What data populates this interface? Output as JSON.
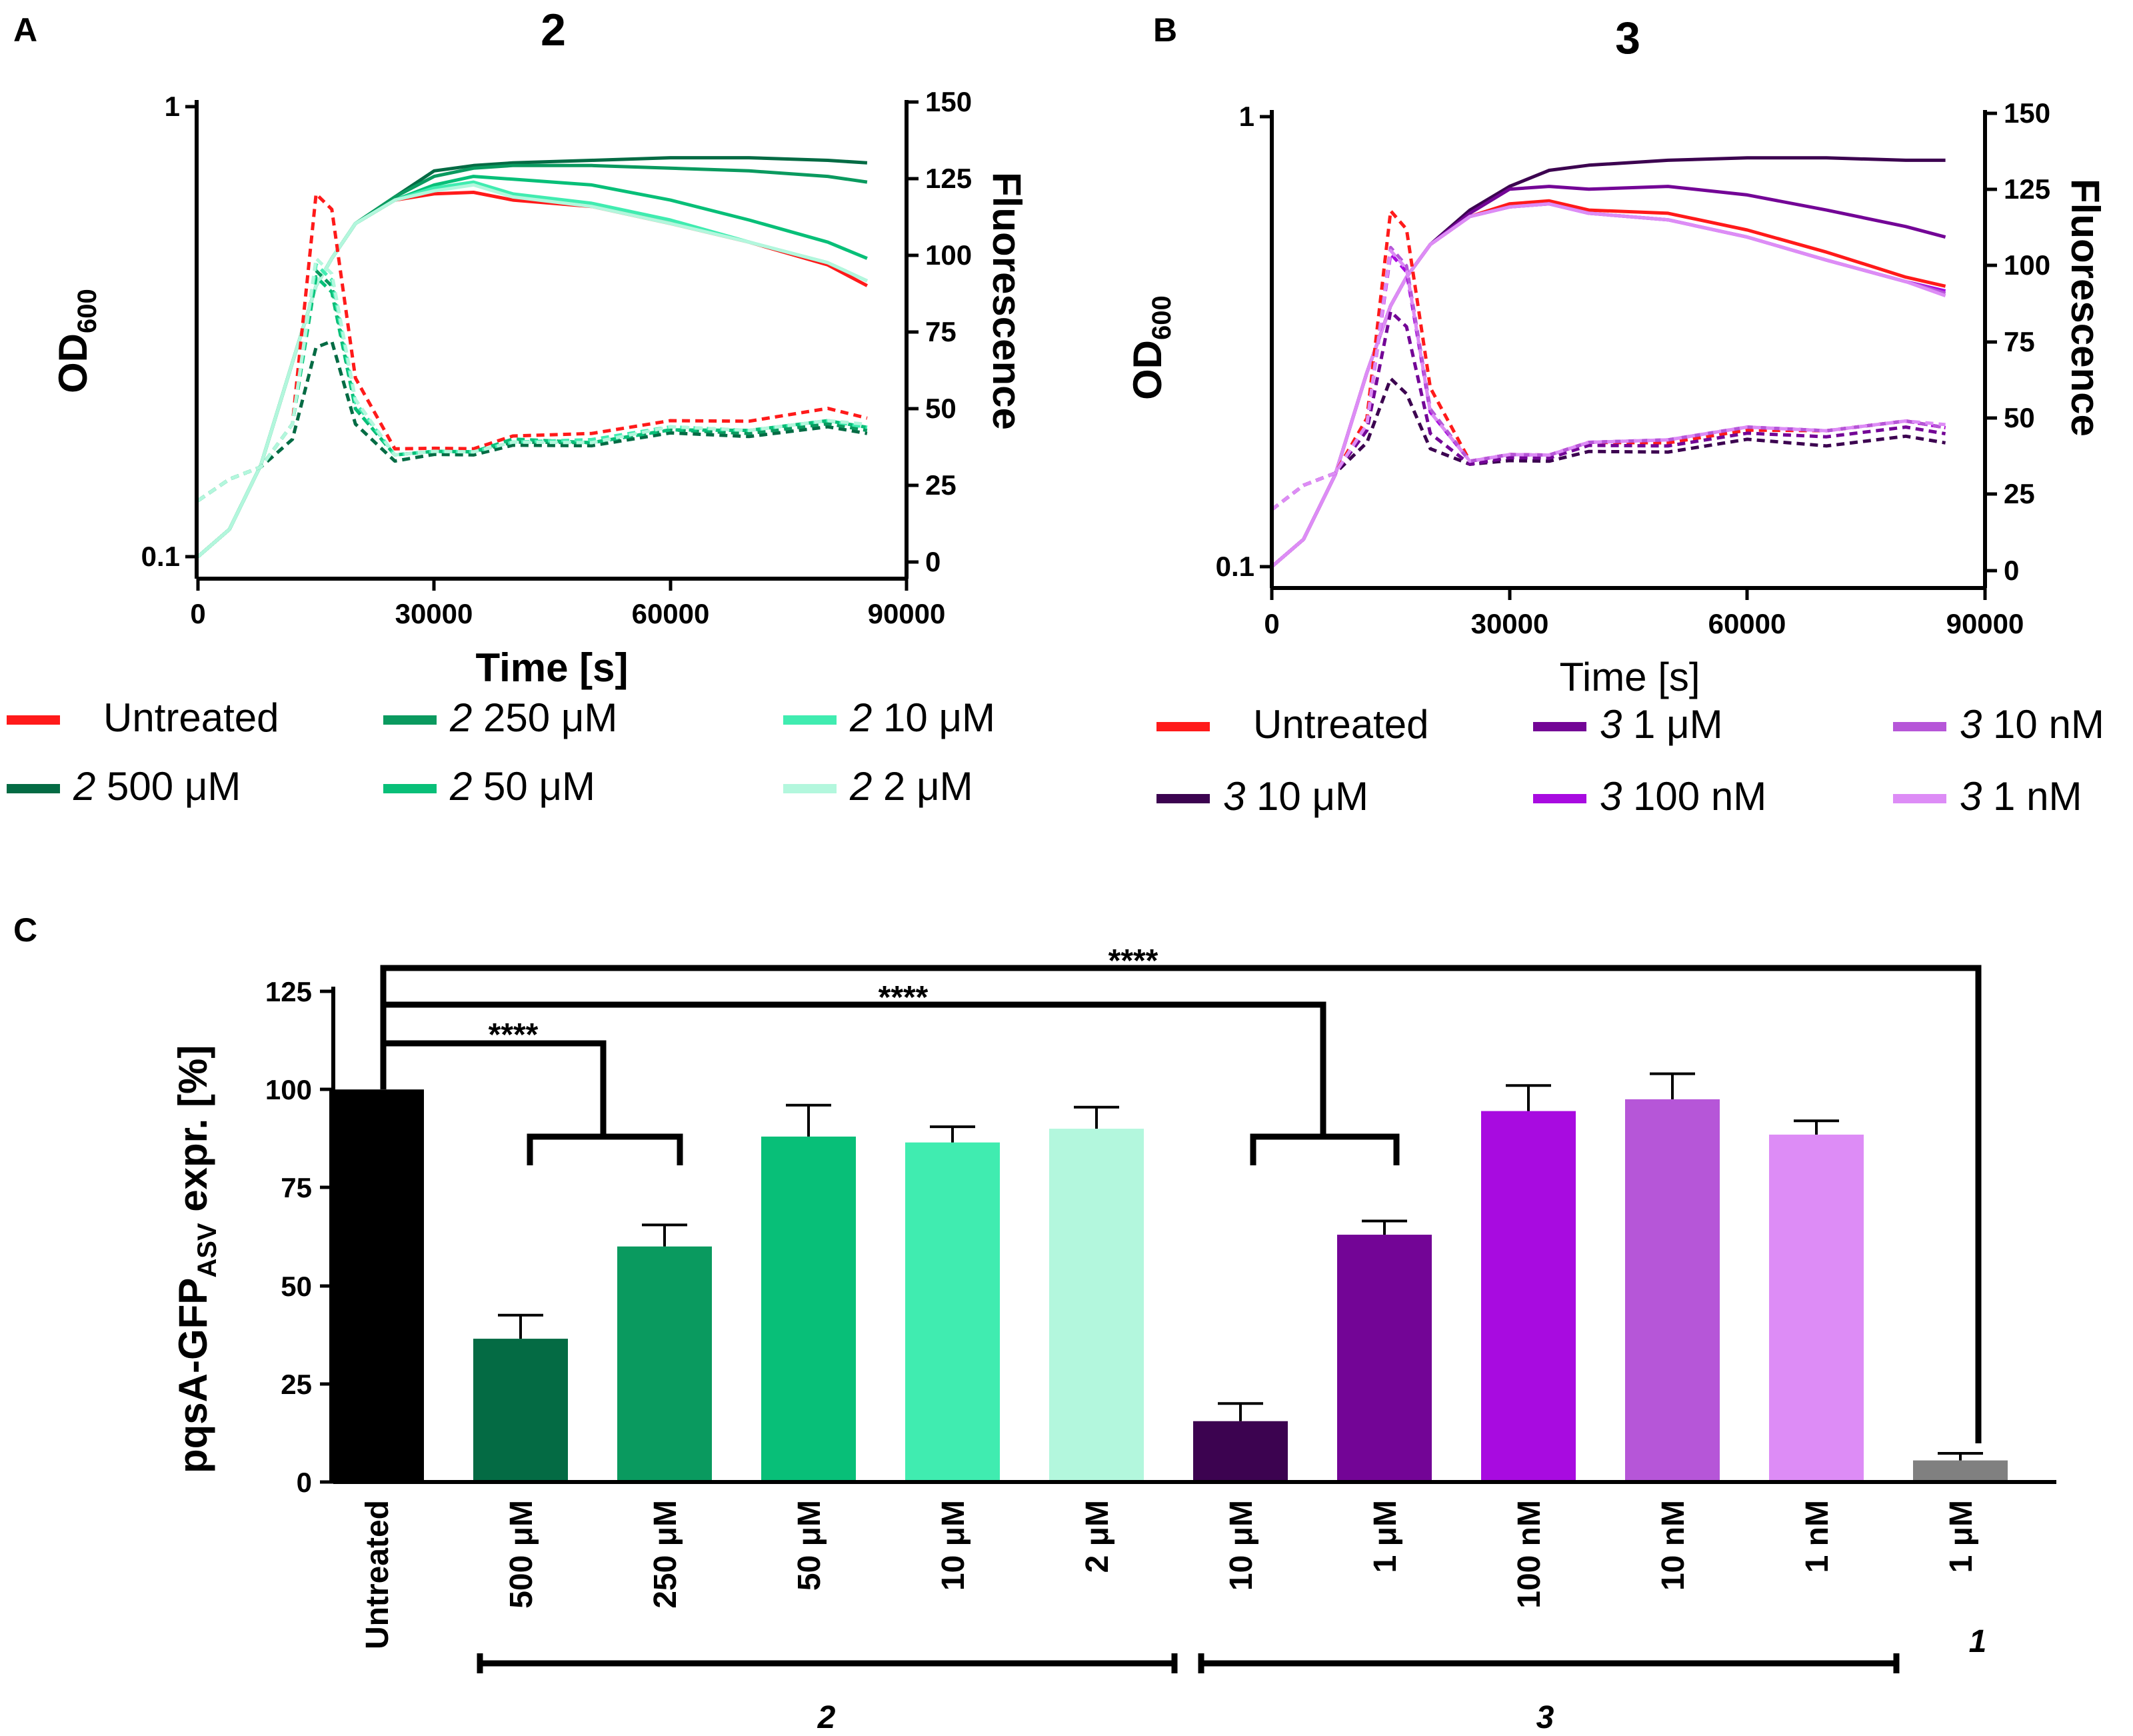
{
  "panels": {
    "A": {
      "label": "A",
      "title": "2"
    },
    "B": {
      "label": "B",
      "title": "3"
    },
    "C": {
      "label": "C"
    }
  },
  "colors": {
    "untreated": "#ff1a1a",
    "c2_500uM": "#046b44",
    "c2_250uM": "#0a9a5f",
    "c2_50uM": "#08bf78",
    "c2_10uM": "#40ecb0",
    "c2_2uM": "#b3f7dd",
    "c3_10uM": "#3c0350",
    "c3_1uM": "#730596",
    "c3_100nM": "#a80be0",
    "c3_10nM": "#b656d8",
    "c3_1nM": "#dd8cf6",
    "c1_1uM": "#808080",
    "black": "#000000"
  },
  "legend_A": [
    {
      "key": "untreated",
      "prefix": "",
      "text": "Untreated"
    },
    {
      "key": "c2_500uM",
      "prefix": "2",
      "text": " 500 μM"
    },
    {
      "key": "c2_250uM",
      "prefix": "2",
      "text": " 250 μM"
    },
    {
      "key": "c2_50uM",
      "prefix": "2",
      "text": " 50 μM"
    },
    {
      "key": "c2_10uM",
      "prefix": "2",
      "text": " 10 μM"
    },
    {
      "key": "c2_2uM",
      "prefix": "2",
      "text": " 2 μM"
    }
  ],
  "legend_B": [
    {
      "key": "untreated",
      "prefix": "",
      "text": "Untreated"
    },
    {
      "key": "c3_10uM",
      "prefix": "3",
      "text": " 10 μM"
    },
    {
      "key": "c3_1uM",
      "prefix": "3",
      "text": " 1 μM"
    },
    {
      "key": "c3_100nM",
      "prefix": "3",
      "text": " 100 nM"
    },
    {
      "key": "c3_10nM",
      "prefix": "3",
      "text": " 10 nM"
    },
    {
      "key": "c3_1nM",
      "prefix": "3",
      "text": " 1 nM"
    }
  ],
  "chart_data": [
    {
      "id": "A",
      "type": "line",
      "title": "2",
      "xlabel": "Time [s]",
      "ylabel_left": "OD600",
      "ylabel_right": "Fluorescence",
      "xlim": [
        0,
        90000
      ],
      "xticks": [
        "0",
        "30000",
        "60000",
        "90000"
      ],
      "ylim_left": [
        0.09,
        1
      ],
      "yscale_left": "log",
      "yticks_left": [
        "0.1",
        "1"
      ],
      "ylim_right": [
        -5,
        150
      ],
      "yticks_right": [
        "0",
        "25",
        "50",
        "75",
        "100",
        "125",
        "150"
      ],
      "x": [
        0,
        4000,
        8000,
        12000,
        15000,
        17000,
        20000,
        25000,
        30000,
        35000,
        40000,
        50000,
        60000,
        70000,
        80000,
        85000
      ],
      "series": [
        {
          "name": "Untreated",
          "key": "untreated",
          "measure": "OD600",
          "style": "solid",
          "values": [
            0.1,
            0.115,
            0.16,
            0.27,
            0.4,
            0.46,
            0.55,
            0.62,
            0.64,
            0.645,
            0.62,
            0.6,
            0.55,
            0.5,
            0.445,
            0.4
          ]
        },
        {
          "name": "2 500 μM",
          "key": "c2_500uM",
          "measure": "OD600",
          "style": "solid",
          "values": [
            0.1,
            0.115,
            0.16,
            0.27,
            0.4,
            0.46,
            0.55,
            0.63,
            0.72,
            0.74,
            0.75,
            0.76,
            0.77,
            0.77,
            0.76,
            0.75
          ]
        },
        {
          "name": "2 250 μM",
          "key": "c2_250uM",
          "measure": "OD600",
          "style": "solid",
          "values": [
            0.1,
            0.115,
            0.16,
            0.27,
            0.4,
            0.46,
            0.55,
            0.63,
            0.7,
            0.73,
            0.74,
            0.74,
            0.73,
            0.72,
            0.7,
            0.68
          ]
        },
        {
          "name": "2 50 μM",
          "key": "c2_50uM",
          "measure": "OD600",
          "style": "solid",
          "values": [
            0.1,
            0.115,
            0.16,
            0.27,
            0.4,
            0.46,
            0.55,
            0.62,
            0.67,
            0.7,
            0.69,
            0.67,
            0.62,
            0.56,
            0.5,
            0.46
          ]
        },
        {
          "name": "2 10 μM",
          "key": "c2_10uM",
          "measure": "OD600",
          "style": "solid",
          "values": [
            0.1,
            0.115,
            0.16,
            0.27,
            0.4,
            0.46,
            0.55,
            0.62,
            0.66,
            0.68,
            0.64,
            0.61,
            0.56,
            0.5,
            0.45,
            0.41
          ]
        },
        {
          "name": "2 2 μM",
          "key": "c2_2uM",
          "measure": "OD600",
          "style": "solid",
          "values": [
            0.1,
            0.115,
            0.16,
            0.27,
            0.4,
            0.46,
            0.55,
            0.62,
            0.65,
            0.67,
            0.63,
            0.6,
            0.55,
            0.5,
            0.45,
            0.41
          ]
        },
        {
          "name": "Untreated",
          "key": "untreated",
          "measure": "Fluorescence",
          "style": "dashed",
          "values": [
            20,
            27,
            31,
            45,
            120,
            115,
            60,
            38,
            36,
            38,
            40,
            43,
            45,
            47,
            49,
            48
          ]
        },
        {
          "name": "2 500 μM",
          "key": "c2_500uM",
          "measure": "Fluorescence",
          "style": "dashed",
          "values": [
            20,
            27,
            31,
            40,
            70,
            72,
            45,
            34,
            34,
            36,
            37,
            39,
            41,
            42,
            43,
            43
          ]
        },
        {
          "name": "2 250 μM",
          "key": "c2_250uM",
          "measure": "Fluorescence",
          "style": "dashed",
          "values": [
            20,
            27,
            31,
            45,
            95,
            90,
            50,
            36,
            35,
            37,
            38,
            40,
            42,
            43,
            44,
            44
          ]
        },
        {
          "name": "2 50 μM",
          "key": "c2_50uM",
          "measure": "Fluorescence",
          "style": "dashed",
          "values": [
            20,
            27,
            31,
            45,
            93,
            88,
            50,
            36,
            35,
            37,
            39,
            40,
            42,
            44,
            45,
            45
          ]
        },
        {
          "name": "2 10 μM",
          "key": "c2_10uM",
          "measure": "Fluorescence",
          "style": "dashed",
          "values": [
            20,
            27,
            31,
            45,
            97,
            92,
            52,
            36,
            35,
            37,
            38,
            41,
            43,
            44,
            45,
            45
          ]
        },
        {
          "name": "2 2 μM",
          "key": "c2_2uM",
          "measure": "Fluorescence",
          "style": "dashed",
          "values": [
            20,
            27,
            31,
            45,
            99,
            94,
            53,
            36,
            35,
            37,
            38,
            40,
            43,
            44,
            45,
            46
          ]
        }
      ]
    },
    {
      "id": "B",
      "type": "line",
      "title": "3",
      "xlabel": "Time [s]",
      "ylabel_left": "OD600",
      "ylabel_right": "Fluorescence",
      "xlim": [
        0,
        90000
      ],
      "xticks": [
        "0",
        "30000",
        "60000",
        "90000"
      ],
      "ylim_left": [
        0.09,
        1
      ],
      "yscale_left": "log",
      "yticks_left": [
        "0.1",
        "1"
      ],
      "ylim_right": [
        -5,
        150
      ],
      "yticks_right": [
        "0",
        "25",
        "50",
        "75",
        "100",
        "125",
        "150"
      ],
      "x": [
        0,
        4000,
        8000,
        12000,
        15000,
        17000,
        20000,
        25000,
        30000,
        35000,
        40000,
        50000,
        60000,
        70000,
        80000,
        85000
      ],
      "series": [
        {
          "name": "Untreated",
          "key": "untreated",
          "measure": "OD600",
          "style": "solid",
          "values": [
            0.1,
            0.115,
            0.16,
            0.27,
            0.38,
            0.44,
            0.52,
            0.6,
            0.64,
            0.65,
            0.62,
            0.61,
            0.56,
            0.5,
            0.44,
            0.42
          ]
        },
        {
          "name": "3 10 μM",
          "key": "c3_10uM",
          "measure": "OD600",
          "style": "solid",
          "values": [
            0.1,
            0.115,
            0.16,
            0.27,
            0.38,
            0.44,
            0.52,
            0.62,
            0.7,
            0.76,
            0.78,
            0.8,
            0.81,
            0.81,
            0.8,
            0.8
          ]
        },
        {
          "name": "3 1 μM",
          "key": "c3_1uM",
          "measure": "OD600",
          "style": "solid",
          "values": [
            0.1,
            0.115,
            0.16,
            0.27,
            0.38,
            0.44,
            0.52,
            0.61,
            0.69,
            0.7,
            0.69,
            0.7,
            0.67,
            0.62,
            0.57,
            0.54
          ]
        },
        {
          "name": "3 100 nM",
          "key": "c3_100nM",
          "measure": "OD600",
          "style": "solid",
          "values": [
            0.1,
            0.115,
            0.16,
            0.27,
            0.38,
            0.44,
            0.52,
            0.6,
            0.63,
            0.64,
            0.61,
            0.59,
            0.54,
            0.48,
            0.43,
            0.41
          ]
        },
        {
          "name": "3 10 nM",
          "key": "c3_10nM",
          "measure": "OD600",
          "style": "solid",
          "values": [
            0.1,
            0.115,
            0.16,
            0.27,
            0.38,
            0.44,
            0.52,
            0.6,
            0.63,
            0.64,
            0.61,
            0.59,
            0.54,
            0.48,
            0.43,
            0.405
          ]
        },
        {
          "name": "3 1 nM",
          "key": "c3_1nM",
          "measure": "OD600",
          "style": "solid",
          "values": [
            0.1,
            0.115,
            0.16,
            0.27,
            0.38,
            0.44,
            0.52,
            0.6,
            0.63,
            0.64,
            0.61,
            0.59,
            0.54,
            0.48,
            0.43,
            0.4
          ]
        },
        {
          "name": "Untreated",
          "key": "untreated",
          "measure": "Fluorescence",
          "style": "dashed",
          "values": [
            20,
            28,
            32,
            50,
            118,
            112,
            60,
            37,
            37,
            39,
            41,
            43,
            45,
            47,
            48,
            48
          ]
        },
        {
          "name": "3 10 μM",
          "key": "c3_10uM",
          "measure": "Fluorescence",
          "style": "dashed",
          "values": [
            20,
            28,
            32,
            42,
            63,
            58,
            40,
            36,
            35,
            37,
            38,
            40,
            42,
            42,
            43,
            43
          ]
        },
        {
          "name": "3 1 μM",
          "key": "c3_1uM",
          "measure": "Fluorescence",
          "style": "dashed",
          "values": [
            20,
            28,
            32,
            46,
            85,
            80,
            45,
            36,
            36,
            38,
            40,
            42,
            44,
            45,
            46,
            46
          ]
        },
        {
          "name": "3 100 nM",
          "key": "c3_100nM",
          "measure": "Fluorescence",
          "style": "dashed",
          "values": [
            20,
            28,
            32,
            48,
            104,
            98,
            52,
            37,
            37,
            39,
            41,
            44,
            46,
            47,
            48,
            48
          ]
        },
        {
          "name": "3 10 nM",
          "key": "c3_10nM",
          "measure": "Fluorescence",
          "style": "dashed",
          "values": [
            20,
            28,
            32,
            48,
            106,
            100,
            53,
            37,
            37,
            39,
            41,
            44,
            46,
            47,
            48,
            48
          ]
        },
        {
          "name": "3 1 nM",
          "key": "c3_1nM",
          "measure": "Fluorescence",
          "style": "dashed",
          "values": [
            20,
            28,
            32,
            48,
            105,
            99,
            52,
            37,
            37,
            39,
            41,
            44,
            46,
            47,
            48,
            49
          ]
        }
      ]
    },
    {
      "id": "C",
      "type": "bar",
      "ylabel_main": "pqsA-GFP",
      "ylabel_sub": "ASV",
      "ylabel_tail": " expr. [%]",
      "ylim": [
        0,
        125
      ],
      "yticks": [
        "0",
        "25",
        "50",
        "75",
        "100",
        "125"
      ],
      "categories": [
        "Untreated",
        "500 μM",
        "250 μM",
        "50 μM",
        "10 μM",
        "2 μM",
        "10 μM",
        "1 μM",
        "100 nM",
        "10 nM",
        "1 nM",
        "1 μM"
      ],
      "values": [
        100,
        36.5,
        60,
        88,
        86.5,
        90,
        15.5,
        63,
        94.5,
        97.5,
        88.5,
        5.5
      ],
      "errors": [
        0,
        6,
        5.5,
        8,
        4,
        5.5,
        4.5,
        3.5,
        6.5,
        6.5,
        3.5,
        1.8
      ],
      "color_keys": [
        "black",
        "c2_500uM",
        "c2_250uM",
        "c2_50uM",
        "c2_10uM",
        "c2_2uM",
        "c3_10uM",
        "c3_1uM",
        "c3_100nM",
        "c3_10nM",
        "c3_1nM",
        "c1_1uM"
      ],
      "groups": [
        {
          "label": "2",
          "from": 1,
          "to": 5
        },
        {
          "label": "3",
          "from": 6,
          "to": 10
        },
        {
          "label": "1",
          "from": 11,
          "to": 11
        }
      ],
      "significance": [
        {
          "label": "****",
          "compare": "Untreated vs 2 500 μM / 250 μM"
        },
        {
          "label": "****",
          "compare": "Untreated vs 3 10 μM / 1 μM"
        },
        {
          "label": "****",
          "compare": "Untreated vs 1 1 μM"
        }
      ]
    }
  ]
}
